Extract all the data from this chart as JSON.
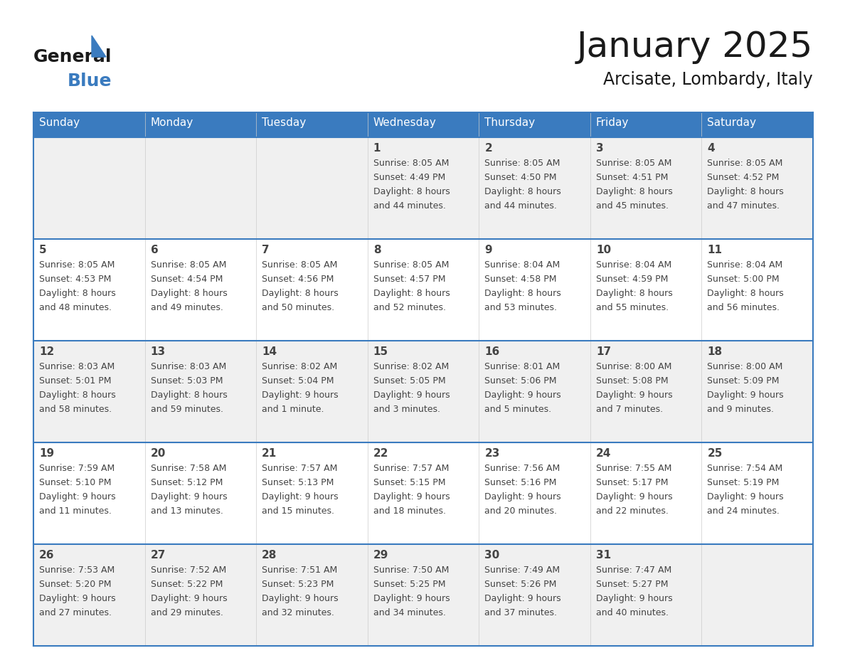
{
  "title": "January 2025",
  "subtitle": "Arcisate, Lombardy, Italy",
  "days_of_week": [
    "Sunday",
    "Monday",
    "Tuesday",
    "Wednesday",
    "Thursday",
    "Friday",
    "Saturday"
  ],
  "header_bg": "#3a7bbf",
  "header_text": "#ffffff",
  "row_bg_light": "#f0f0f0",
  "row_bg_white": "#ffffff",
  "separator_color": "#3a7bbf",
  "text_color": "#444444",
  "title_color": "#1a1a1a",
  "calendar_data": [
    [
      {
        "day": null,
        "sunrise": null,
        "sunset": null,
        "daylight_line1": null,
        "daylight_line2": null
      },
      {
        "day": null,
        "sunrise": null,
        "sunset": null,
        "daylight_line1": null,
        "daylight_line2": null
      },
      {
        "day": null,
        "sunrise": null,
        "sunset": null,
        "daylight_line1": null,
        "daylight_line2": null
      },
      {
        "day": "1",
        "sunrise": "8:05 AM",
        "sunset": "4:49 PM",
        "daylight_line1": "8 hours",
        "daylight_line2": "and 44 minutes."
      },
      {
        "day": "2",
        "sunrise": "8:05 AM",
        "sunset": "4:50 PM",
        "daylight_line1": "8 hours",
        "daylight_line2": "and 44 minutes."
      },
      {
        "day": "3",
        "sunrise": "8:05 AM",
        "sunset": "4:51 PM",
        "daylight_line1": "8 hours",
        "daylight_line2": "and 45 minutes."
      },
      {
        "day": "4",
        "sunrise": "8:05 AM",
        "sunset": "4:52 PM",
        "daylight_line1": "8 hours",
        "daylight_line2": "and 47 minutes."
      }
    ],
    [
      {
        "day": "5",
        "sunrise": "8:05 AM",
        "sunset": "4:53 PM",
        "daylight_line1": "8 hours",
        "daylight_line2": "and 48 minutes."
      },
      {
        "day": "6",
        "sunrise": "8:05 AM",
        "sunset": "4:54 PM",
        "daylight_line1": "8 hours",
        "daylight_line2": "and 49 minutes."
      },
      {
        "day": "7",
        "sunrise": "8:05 AM",
        "sunset": "4:56 PM",
        "daylight_line1": "8 hours",
        "daylight_line2": "and 50 minutes."
      },
      {
        "day": "8",
        "sunrise": "8:05 AM",
        "sunset": "4:57 PM",
        "daylight_line1": "8 hours",
        "daylight_line2": "and 52 minutes."
      },
      {
        "day": "9",
        "sunrise": "8:04 AM",
        "sunset": "4:58 PM",
        "daylight_line1": "8 hours",
        "daylight_line2": "and 53 minutes."
      },
      {
        "day": "10",
        "sunrise": "8:04 AM",
        "sunset": "4:59 PM",
        "daylight_line1": "8 hours",
        "daylight_line2": "and 55 minutes."
      },
      {
        "day": "11",
        "sunrise": "8:04 AM",
        "sunset": "5:00 PM",
        "daylight_line1": "8 hours",
        "daylight_line2": "and 56 minutes."
      }
    ],
    [
      {
        "day": "12",
        "sunrise": "8:03 AM",
        "sunset": "5:01 PM",
        "daylight_line1": "8 hours",
        "daylight_line2": "and 58 minutes."
      },
      {
        "day": "13",
        "sunrise": "8:03 AM",
        "sunset": "5:03 PM",
        "daylight_line1": "8 hours",
        "daylight_line2": "and 59 minutes."
      },
      {
        "day": "14",
        "sunrise": "8:02 AM",
        "sunset": "5:04 PM",
        "daylight_line1": "9 hours",
        "daylight_line2": "and 1 minute."
      },
      {
        "day": "15",
        "sunrise": "8:02 AM",
        "sunset": "5:05 PM",
        "daylight_line1": "9 hours",
        "daylight_line2": "and 3 minutes."
      },
      {
        "day": "16",
        "sunrise": "8:01 AM",
        "sunset": "5:06 PM",
        "daylight_line1": "9 hours",
        "daylight_line2": "and 5 minutes."
      },
      {
        "day": "17",
        "sunrise": "8:00 AM",
        "sunset": "5:08 PM",
        "daylight_line1": "9 hours",
        "daylight_line2": "and 7 minutes."
      },
      {
        "day": "18",
        "sunrise": "8:00 AM",
        "sunset": "5:09 PM",
        "daylight_line1": "9 hours",
        "daylight_line2": "and 9 minutes."
      }
    ],
    [
      {
        "day": "19",
        "sunrise": "7:59 AM",
        "sunset": "5:10 PM",
        "daylight_line1": "9 hours",
        "daylight_line2": "and 11 minutes."
      },
      {
        "day": "20",
        "sunrise": "7:58 AM",
        "sunset": "5:12 PM",
        "daylight_line1": "9 hours",
        "daylight_line2": "and 13 minutes."
      },
      {
        "day": "21",
        "sunrise": "7:57 AM",
        "sunset": "5:13 PM",
        "daylight_line1": "9 hours",
        "daylight_line2": "and 15 minutes."
      },
      {
        "day": "22",
        "sunrise": "7:57 AM",
        "sunset": "5:15 PM",
        "daylight_line1": "9 hours",
        "daylight_line2": "and 18 minutes."
      },
      {
        "day": "23",
        "sunrise": "7:56 AM",
        "sunset": "5:16 PM",
        "daylight_line1": "9 hours",
        "daylight_line2": "and 20 minutes."
      },
      {
        "day": "24",
        "sunrise": "7:55 AM",
        "sunset": "5:17 PM",
        "daylight_line1": "9 hours",
        "daylight_line2": "and 22 minutes."
      },
      {
        "day": "25",
        "sunrise": "7:54 AM",
        "sunset": "5:19 PM",
        "daylight_line1": "9 hours",
        "daylight_line2": "and 24 minutes."
      }
    ],
    [
      {
        "day": "26",
        "sunrise": "7:53 AM",
        "sunset": "5:20 PM",
        "daylight_line1": "9 hours",
        "daylight_line2": "and 27 minutes."
      },
      {
        "day": "27",
        "sunrise": "7:52 AM",
        "sunset": "5:22 PM",
        "daylight_line1": "9 hours",
        "daylight_line2": "and 29 minutes."
      },
      {
        "day": "28",
        "sunrise": "7:51 AM",
        "sunset": "5:23 PM",
        "daylight_line1": "9 hours",
        "daylight_line2": "and 32 minutes."
      },
      {
        "day": "29",
        "sunrise": "7:50 AM",
        "sunset": "5:25 PM",
        "daylight_line1": "9 hours",
        "daylight_line2": "and 34 minutes."
      },
      {
        "day": "30",
        "sunrise": "7:49 AM",
        "sunset": "5:26 PM",
        "daylight_line1": "9 hours",
        "daylight_line2": "and 37 minutes."
      },
      {
        "day": "31",
        "sunrise": "7:47 AM",
        "sunset": "5:27 PM",
        "daylight_line1": "9 hours",
        "daylight_line2": "and 40 minutes."
      },
      {
        "day": null,
        "sunrise": null,
        "sunset": null,
        "daylight_line1": null,
        "daylight_line2": null
      }
    ]
  ]
}
